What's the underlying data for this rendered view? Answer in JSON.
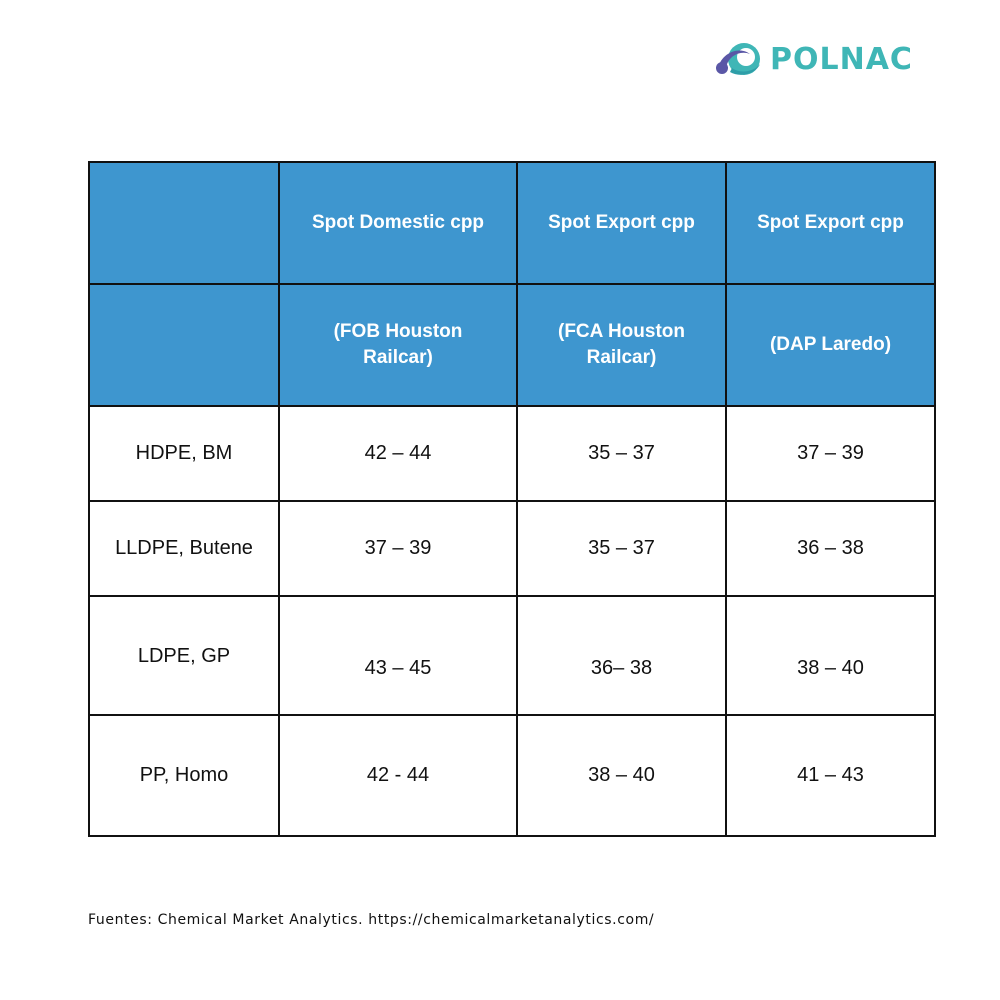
{
  "brand": {
    "name": "POLNAC",
    "logo_icon": "polnac-swirl-logo",
    "colors": {
      "teal": "#3fb6b6",
      "purple": "#5a57a6",
      "header_blue": "#3e96cf"
    }
  },
  "table": {
    "header_row_1": [
      "",
      "Spot Domestic cpp",
      "Spot Export cpp",
      "Spot Export cpp"
    ],
    "header_row_2": [
      "",
      "(FOB Houston Railcar)",
      "(FCA Houston Railcar)",
      "(DAP Laredo)"
    ],
    "rows": [
      {
        "product": "HDPE, BM",
        "values": [
          "42 – 44",
          "35 – 37",
          "37 – 39"
        ]
      },
      {
        "product": "LLDPE, Butene",
        "values": [
          "37 – 39",
          "35 – 37",
          "36 – 38"
        ]
      },
      {
        "product": "LDPE, GP",
        "values": [
          "43 – 45",
          "36– 38",
          "38 – 40"
        ]
      },
      {
        "product": "PP, Homo",
        "values": [
          "42 - 44",
          "38 – 40",
          "41 – 43"
        ]
      }
    ]
  },
  "footer": {
    "source": "Fuentes: Chemical Market Analytics. https://chemicalmarketanalytics.com/"
  }
}
